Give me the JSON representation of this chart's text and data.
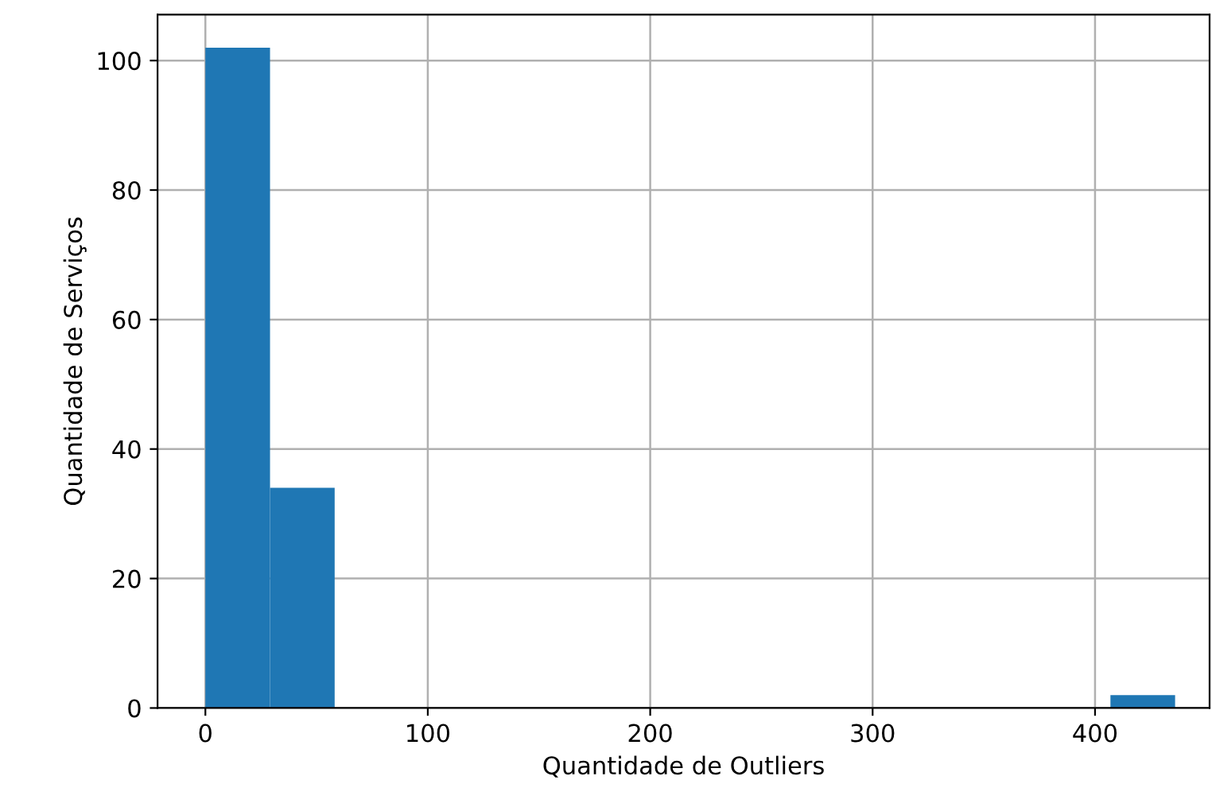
{
  "chart_data": {
    "type": "histogram",
    "xlabel": "Quantidade de Outliers",
    "ylabel": "Quantidade de Serviços",
    "bins": [
      0,
      29.07,
      58.13,
      87.2,
      116.27,
      145.33,
      174.4,
      203.47,
      232.53,
      261.6,
      290.67,
      319.73,
      348.8,
      377.87,
      406.93,
      436
    ],
    "values": [
      102,
      34,
      0,
      0,
      0,
      0,
      0,
      0,
      0,
      0,
      0,
      0,
      0,
      0,
      2
    ],
    "color": "#1f77b4",
    "xlim": [
      -21.5,
      451.5
    ],
    "ylim": [
      0,
      107.1
    ],
    "xticks": [
      0,
      100,
      200,
      300,
      400
    ],
    "yticks": [
      0,
      20,
      40,
      60,
      80,
      100
    ],
    "grid": true
  }
}
